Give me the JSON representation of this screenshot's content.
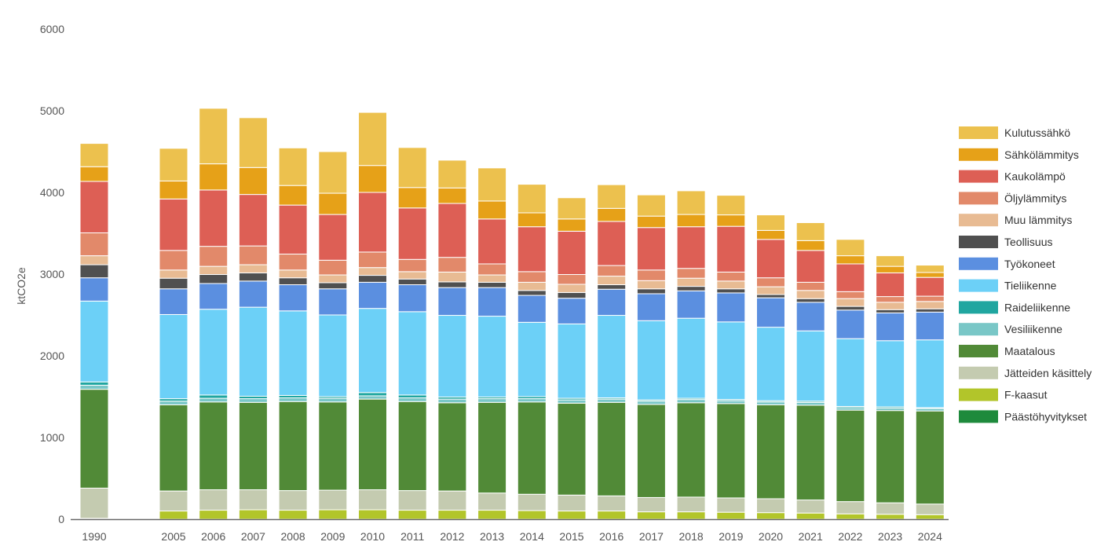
{
  "chart_data": {
    "type": "bar",
    "stacked": true,
    "title": "",
    "xlabel": "",
    "ylabel": "ktCO2e",
    "ylim": [
      0,
      6000
    ],
    "yticks": [
      0,
      1000,
      2000,
      3000,
      4000,
      5000,
      6000
    ],
    "grid": false,
    "legend_position": "right",
    "categories": [
      "1990",
      "2005",
      "2006",
      "2007",
      "2008",
      "2009",
      "2010",
      "2011",
      "2012",
      "2013",
      "2014",
      "2015",
      "2016",
      "2017",
      "2018",
      "2019",
      "2020",
      "2021",
      "2022",
      "2023",
      "2024"
    ],
    "series": [
      {
        "name": "Päästöhyvitykset",
        "color": "#1e8a3c",
        "values": [
          0,
          0,
          0,
          0,
          0,
          0,
          0,
          0,
          0,
          0,
          0,
          0,
          0,
          0,
          0,
          0,
          0,
          0,
          0,
          0,
          0
        ]
      },
      {
        "name": "F-kaasut",
        "color": "#b2c52a",
        "values": [
          10,
          100,
          110,
          115,
          110,
          115,
          115,
          110,
          110,
          110,
          105,
          100,
          100,
          90,
          90,
          85,
          80,
          75,
          65,
          60,
          55
        ]
      },
      {
        "name": "Jätteiden käsittely",
        "color": "#c4cbb0",
        "values": [
          370,
          245,
          250,
          245,
          240,
          240,
          245,
          240,
          235,
          210,
          200,
          195,
          185,
          175,
          180,
          175,
          170,
          160,
          150,
          140,
          130
        ]
      },
      {
        "name": "Maatalous",
        "color": "#518a37",
        "values": [
          1210,
          1055,
          1075,
          1070,
          1090,
          1080,
          1110,
          1090,
          1080,
          1110,
          1130,
          1125,
          1145,
          1140,
          1155,
          1155,
          1150,
          1160,
          1120,
          1130,
          1140
        ]
      },
      {
        "name": "Vesiliikenne",
        "color": "#79c7c7",
        "values": [
          50,
          45,
          45,
          45,
          45,
          45,
          40,
          45,
          45,
          45,
          40,
          40,
          40,
          40,
          40,
          35,
          35,
          35,
          30,
          30,
          30
        ]
      },
      {
        "name": "Raideliikenne",
        "color": "#20a6a0",
        "values": [
          40,
          30,
          40,
          30,
          30,
          20,
          40,
          35,
          25,
          20,
          25,
          20,
          15,
          15,
          15,
          15,
          15,
          15,
          15,
          15,
          10
        ]
      },
      {
        "name": "Tieliikenne",
        "color": "#6cd0f7",
        "values": [
          990,
          1030,
          1050,
          1090,
          1035,
          1000,
          1030,
          1020,
          1000,
          990,
          910,
          910,
          1010,
          970,
          980,
          950,
          900,
          860,
          830,
          810,
          830
        ]
      },
      {
        "name": "Työkoneet",
        "color": "#5b8fe0",
        "values": [
          285,
          315,
          315,
          320,
          320,
          320,
          320,
          330,
          340,
          350,
          330,
          315,
          320,
          330,
          335,
          355,
          360,
          350,
          350,
          340,
          340
        ]
      },
      {
        "name": "Teollisuus",
        "color": "#505050",
        "values": [
          160,
          130,
          110,
          100,
          85,
          75,
          85,
          70,
          70,
          65,
          60,
          70,
          55,
          60,
          55,
          50,
          40,
          45,
          45,
          40,
          40
        ]
      },
      {
        "name": "Muu lämmitys",
        "color": "#e8bb93",
        "values": [
          110,
          100,
          100,
          100,
          95,
          95,
          95,
          90,
          120,
          90,
          100,
          100,
          105,
          100,
          100,
          95,
          95,
          100,
          95,
          90,
          90
        ]
      },
      {
        "name": "Öljylämmitys",
        "color": "#e2896a",
        "values": [
          280,
          240,
          245,
          230,
          195,
          180,
          190,
          150,
          180,
          135,
          130,
          120,
          130,
          130,
          120,
          110,
          110,
          100,
          85,
          70,
          65
        ]
      },
      {
        "name": "Kaukolämpö",
        "color": "#dd5f55",
        "values": [
          630,
          630,
          690,
          630,
          600,
          560,
          730,
          630,
          660,
          550,
          550,
          530,
          540,
          520,
          510,
          560,
          470,
          390,
          340,
          290,
          230
        ]
      },
      {
        "name": "Sähkölämmitys",
        "color": "#e6a118",
        "values": [
          180,
          220,
          320,
          330,
          240,
          260,
          330,
          250,
          190,
          220,
          170,
          150,
          160,
          140,
          150,
          140,
          110,
          120,
          100,
          80,
          60
        ]
      },
      {
        "name": "Kulutussähkö",
        "color": "#ecc14e",
        "values": [
          285,
          400,
          680,
          610,
          460,
          510,
          650,
          490,
          340,
          405,
          350,
          260,
          290,
          260,
          290,
          240,
          190,
          220,
          200,
          130,
          90
        ]
      }
    ]
  }
}
